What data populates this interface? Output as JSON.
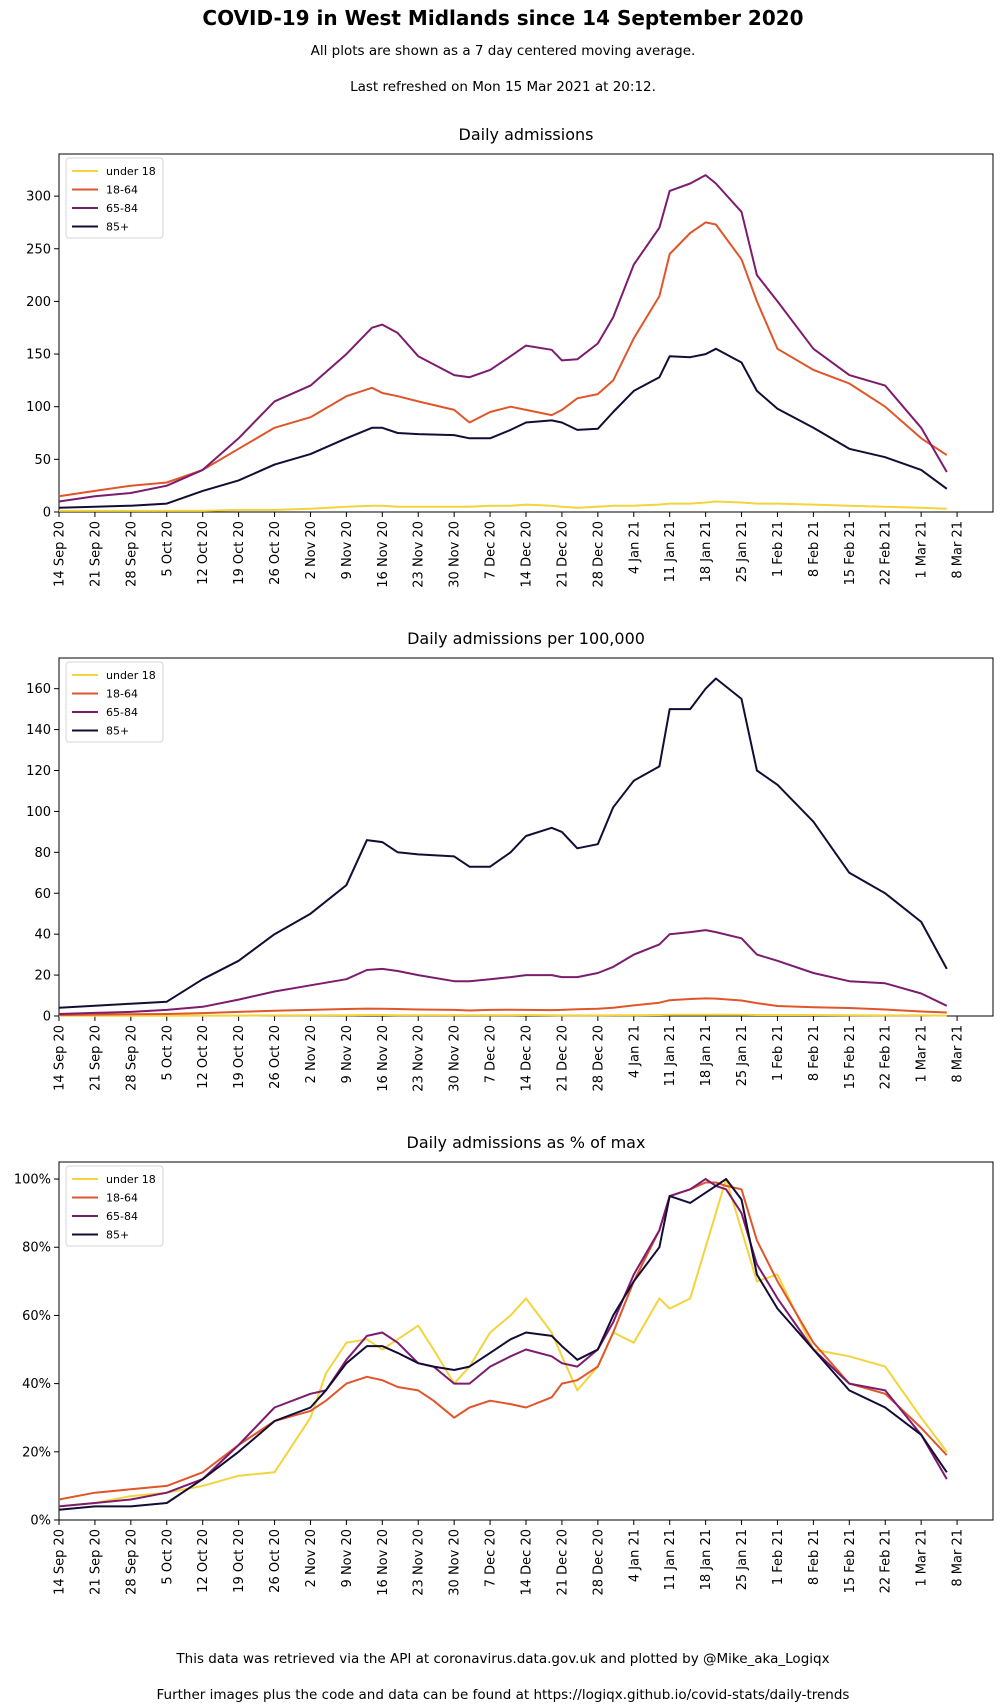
{
  "header": {
    "title": "COVID-19 in West Midlands since 14 September 2020",
    "subtitle": "All plots are shown as a 7 day centered moving average.",
    "refreshed": "Last refreshed on Mon 15 Mar 2021 at 20:12."
  },
  "footer": {
    "line1": "This data was retrieved via the API at coronavirus.data.gov.uk and plotted by @Mike_aka_Logiqx",
    "line2": "Further images plus the code and data can be found at https://logiqx.github.io/covid-stats/daily-trends"
  },
  "colors": {
    "under 18": "#f3d43d",
    "18-64": "#e0562b",
    "65-84": "#7d1c6f",
    "85+": "#150c36"
  },
  "x_ticks": [
    "14 Sep 20",
    "21 Sep 20",
    "28 Sep 20",
    "5 Oct 20",
    "12 Oct 20",
    "19 Oct 20",
    "26 Oct 20",
    "2 Nov 20",
    "9 Nov 20",
    "16 Nov 20",
    "23 Nov 20",
    "30 Nov 20",
    "7 Dec 20",
    "14 Dec 20",
    "21 Dec 20",
    "28 Dec 20",
    "4 Jan 21",
    "11 Jan 21",
    "18 Jan 21",
    "25 Jan 21",
    "1 Feb 21",
    "8 Feb 21",
    "15 Feb 21",
    "22 Feb 21",
    "1 Mar 21",
    "8 Mar 21"
  ],
  "chart_data": [
    {
      "type": "line",
      "title": "Daily admissions",
      "ylim": [
        0,
        340
      ],
      "y_ticks": [
        0,
        50,
        100,
        150,
        200,
        250,
        300
      ],
      "y_tick_labels": [
        "0",
        "50",
        "100",
        "150",
        "200",
        "250",
        "300"
      ],
      "legend": "top-left",
      "grid": false,
      "x_dates_start": "14 Sep 20",
      "x_days": [
        0,
        7,
        14,
        21,
        28,
        35,
        42,
        49,
        56,
        61,
        63,
        66,
        70,
        77,
        80,
        84,
        88,
        91,
        96,
        98,
        101,
        105,
        108,
        112,
        117,
        119,
        123,
        126,
        128,
        133,
        136,
        140,
        147,
        154,
        161,
        168,
        173
      ],
      "series": [
        {
          "name": "under 18",
          "values": [
            1,
            1,
            1,
            1,
            1,
            2,
            2,
            3,
            5,
            6,
            6,
            5,
            5,
            5,
            5,
            6,
            6,
            7,
            6,
            5,
            4,
            5,
            6,
            6,
            7,
            8,
            8,
            9,
            10,
            9,
            8,
            8,
            7,
            6,
            5,
            4,
            3
          ]
        },
        {
          "name": "18-64",
          "values": [
            15,
            20,
            25,
            28,
            40,
            60,
            80,
            90,
            110,
            118,
            113,
            110,
            105,
            97,
            85,
            95,
            100,
            97,
            92,
            97,
            108,
            112,
            125,
            165,
            205,
            245,
            265,
            275,
            273,
            240,
            200,
            155,
            135,
            122,
            100,
            70,
            54
          ]
        },
        {
          "name": "65-84",
          "values": [
            10,
            15,
            18,
            25,
            40,
            70,
            105,
            120,
            150,
            175,
            178,
            170,
            148,
            130,
            128,
            135,
            148,
            158,
            154,
            144,
            145,
            160,
            185,
            235,
            270,
            305,
            312,
            320,
            312,
            285,
            225,
            200,
            155,
            130,
            120,
            80,
            38
          ]
        },
        {
          "name": "85+",
          "values": [
            4,
            5,
            6,
            8,
            20,
            30,
            45,
            55,
            70,
            80,
            80,
            75,
            74,
            73,
            70,
            70,
            78,
            85,
            87,
            85,
            78,
            79,
            95,
            115,
            128,
            148,
            147,
            150,
            155,
            142,
            115,
            98,
            80,
            60,
            52,
            40,
            22
          ]
        }
      ]
    },
    {
      "type": "line",
      "title": "Daily admissions per 100,000",
      "ylim": [
        0,
        175
      ],
      "y_ticks": [
        0,
        20,
        40,
        60,
        80,
        100,
        120,
        140,
        160
      ],
      "y_tick_labels": [
        "0",
        "20",
        "40",
        "60",
        "80",
        "100",
        "120",
        "140",
        "160"
      ],
      "legend": "top-left",
      "grid": false,
      "x_dates_start": "14 Sep 20",
      "x_days": [
        0,
        7,
        14,
        21,
        28,
        35,
        42,
        49,
        56,
        60,
        63,
        66,
        70,
        77,
        80,
        84,
        88,
        91,
        96,
        98,
        101,
        105,
        108,
        112,
        117,
        119,
        123,
        126,
        128,
        133,
        136,
        140,
        147,
        154,
        161,
        168,
        173
      ],
      "series": [
        {
          "name": "under 18",
          "values": [
            0.1,
            0.1,
            0.1,
            0.1,
            0.2,
            0.2,
            0.3,
            0.3,
            0.4,
            0.5,
            0.5,
            0.4,
            0.4,
            0.4,
            0.4,
            0.4,
            0.4,
            0.5,
            0.4,
            0.3,
            0.3,
            0.3,
            0.4,
            0.4,
            0.5,
            0.6,
            0.6,
            0.6,
            0.7,
            0.6,
            0.5,
            0.5,
            0.5,
            0.4,
            0.3,
            0.3,
            0.2
          ]
        },
        {
          "name": "18-64",
          "values": [
            0.5,
            0.7,
            0.9,
            1,
            1.4,
            2,
            2.6,
            3,
            3.4,
            3.6,
            3.5,
            3.4,
            3.2,
            3,
            2.7,
            3,
            3.1,
            3,
            2.9,
            3,
            3.3,
            3.5,
            4,
            5.2,
            6.5,
            7.7,
            8.3,
            8.6,
            8.5,
            7.6,
            6.3,
            4.9,
            4.3,
            3.9,
            3.2,
            2.2,
            1.7
          ]
        },
        {
          "name": "65-84",
          "values": [
            1,
            1.5,
            2,
            3,
            4.5,
            8,
            12,
            15,
            18,
            22.5,
            23,
            22,
            20,
            17,
            17,
            18,
            19,
            20,
            20,
            19,
            19,
            21,
            24,
            30,
            35,
            40,
            41,
            42,
            41,
            38,
            30,
            27,
            21,
            17,
            16,
            11,
            5
          ]
        },
        {
          "name": "85+",
          "values": [
            4,
            5,
            6,
            7,
            18,
            27,
            40,
            50,
            64,
            86,
            85,
            80,
            79,
            78,
            73,
            73,
            80,
            88,
            92,
            90,
            82,
            84,
            102,
            115,
            122,
            150,
            150,
            160,
            165,
            155,
            120,
            113,
            95,
            70,
            60,
            46,
            23
          ]
        }
      ]
    },
    {
      "type": "line",
      "title": "Daily admissions as % of max",
      "ylim": [
        0,
        105
      ],
      "y_ticks": [
        0,
        20,
        40,
        60,
        80,
        100
      ],
      "y_tick_labels": [
        "0%",
        "20%",
        "40%",
        "60%",
        "80%",
        "100%"
      ],
      "legend": "top-left",
      "grid": false,
      "x_dates_start": "14 Sep 20",
      "x_days": [
        0,
        7,
        14,
        21,
        28,
        35,
        42,
        49,
        52,
        56,
        60,
        63,
        66,
        70,
        73,
        77,
        80,
        84,
        88,
        91,
        96,
        98,
        101,
        105,
        108,
        112,
        117,
        119,
        123,
        126,
        128,
        130,
        133,
        136,
        140,
        147,
        154,
        161,
        168,
        173
      ],
      "series": [
        {
          "name": "under 18",
          "values": [
            4,
            5,
            7,
            8,
            10,
            13,
            14,
            30,
            43,
            52,
            53,
            50,
            53,
            57,
            50,
            40,
            45,
            55,
            60,
            65,
            55,
            48,
            38,
            45,
            55,
            52,
            65,
            62,
            65,
            80,
            90,
            100,
            85,
            70,
            72,
            50,
            48,
            45,
            30,
            20
          ]
        },
        {
          "name": "18-64",
          "values": [
            6,
            8,
            9,
            10,
            14,
            22,
            29,
            32,
            35,
            40,
            42,
            41,
            39,
            38,
            35,
            30,
            33,
            35,
            34,
            33,
            36,
            40,
            41,
            45,
            55,
            70,
            85,
            95,
            97,
            99,
            99,
            98,
            97,
            82,
            70,
            52,
            40,
            37,
            27,
            19
          ]
        },
        {
          "name": "65-84",
          "values": [
            4,
            5,
            6,
            8,
            12,
            22,
            33,
            37,
            38,
            47,
            54,
            55,
            52,
            46,
            45,
            40,
            40,
            45,
            48,
            50,
            48,
            46,
            45,
            50,
            58,
            72,
            85,
            95,
            97,
            100,
            98,
            97,
            90,
            75,
            65,
            50,
            40,
            38,
            25,
            12
          ]
        },
        {
          "name": "85+",
          "values": [
            3,
            4,
            4,
            5,
            12,
            20,
            29,
            33,
            38,
            46,
            51,
            51,
            49,
            46,
            45,
            44,
            45,
            49,
            53,
            55,
            54,
            51,
            47,
            50,
            60,
            70,
            80,
            95,
            93,
            96,
            98,
            100,
            94,
            72,
            62,
            50,
            38,
            33,
            25,
            14
          ]
        }
      ]
    }
  ]
}
